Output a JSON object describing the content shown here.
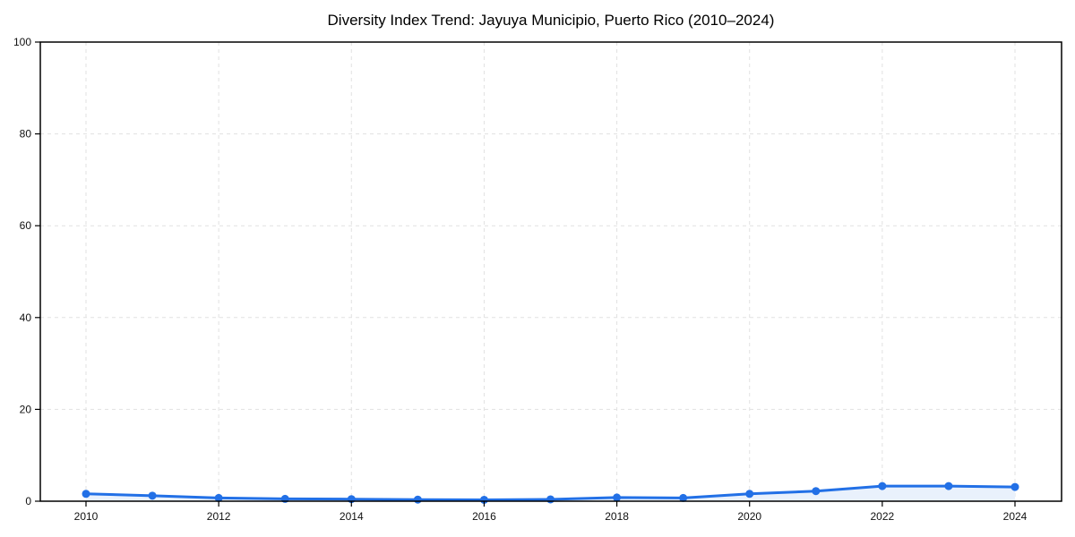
{
  "chart_data": {
    "type": "line",
    "title": "Diversity Index Trend: Jayuya Municipio, Puerto Rico (2010–2024)",
    "xlabel": "",
    "ylabel": "",
    "x": [
      2010,
      2011,
      2012,
      2013,
      2014,
      2015,
      2016,
      2017,
      2018,
      2019,
      2020,
      2021,
      2022,
      2023,
      2024
    ],
    "series": [
      {
        "name": "Diversity Index",
        "values": [
          1.6,
          1.2,
          0.7,
          0.5,
          0.45,
          0.35,
          0.3,
          0.4,
          0.8,
          0.7,
          1.6,
          2.2,
          3.3,
          3.3,
          3.1
        ]
      }
    ],
    "ylim": [
      0,
      100
    ],
    "xticks": [
      2010,
      2012,
      2014,
      2016,
      2018,
      2020,
      2022,
      2024
    ],
    "yticks": [
      0,
      20,
      40,
      60,
      80,
      100
    ],
    "grid": true,
    "grid_style": "dashed",
    "legend_position": "none",
    "marker": "circle",
    "colors": {
      "line": "#2270e6",
      "marker": "#2270e6",
      "fill": "#e9f1fc",
      "grid": "#e1e1e1",
      "spine": "#000000",
      "text": "#111111",
      "background": "#ffffff"
    }
  }
}
